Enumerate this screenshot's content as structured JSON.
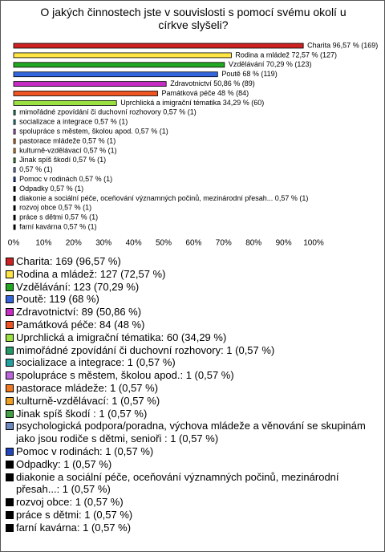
{
  "chart_data": {
    "type": "bar",
    "orientation": "horizontal",
    "title": "O jakých činnostech jste v souvislosti s pomocí svému okolí u církve slyšeli?",
    "values": [
      96.57,
      72.57,
      70.29,
      68,
      50.86,
      48,
      34.29,
      0.57,
      0.57,
      0.57,
      0.57,
      0.57,
      0.57,
      0.57,
      0.57,
      0.57,
      0.57,
      0.57,
      0.57,
      0.57
    ],
    "value_labels": [
      "Charita 96,57 % (169)",
      "Rodina a mládež 72,57 % (127)",
      "Vzdělávání 70,29 % (123)",
      "Poutě 68 % (119)",
      "Zdravotnictví 50,86 % (89)",
      "Památková péče 48 % (84)",
      "Uprchlická a imigrační tématika 34,29 % (60)",
      "mimořádné zpovídání či duchovní rozhovory 0,57 % (1)",
      "socializace a integrace 0,57 % (1)",
      "spolupráce s městem, školou apod. 0,57 % (1)",
      "pastorace mládeže 0,57 % (1)",
      "kulturně-vzdělávací 0,57 % (1)",
      "Jinak spíš škodí  0,57 % (1)",
      "0,57 % (1)",
      "Pomoc v rodinách 0,57 % (1)",
      "Odpadky 0,57 % (1)",
      "diakonie a sociální péče, oceňování významných počinů, mezinárodní přesah... 0,57 % (1)",
      "rozvoj obce 0,57 % (1)",
      "práce s dětmi 0,57 % (1)",
      "farní kavárna 0,57 % (1)"
    ],
    "categories": [
      "Charita: 169 (96,57 %)",
      "Rodina a mládež: 127 (72,57 %)",
      "Vzdělávání: 123 (70,29 %)",
      "Poutě: 119 (68 %)",
      "Zdravotnictví: 89 (50,86 %)",
      "Památková péče: 84 (48 %)",
      "Uprchlická a imigrační tématika: 60 (34,29 %)",
      "mimořádné zpovídání či duchovní rozhovory: 1 (0,57 %)",
      "socializace a integrace: 1 (0,57 %)",
      "spolupráce s městem, školou apod.: 1 (0,57 %)",
      "pastorace mládeže: 1 (0,57 %)",
      "kulturně-vzdělávací: 1 (0,57 %)",
      "Jinak spíš škodí : 1 (0,57 %)",
      "psychologická podpora/poradna, výchova mládeže a věnování se skupinám jako jsou rodiče s dětmi, senioři : 1 (0,57 %)",
      "Pomoc v rodinách: 1 (0,57 %)",
      "Odpadky: 1 (0,57 %)",
      "diakonie a sociální péče, oceňování významných počinů, mezinárodní přesah...: 1 (0,57 %)",
      "rozvoj obce: 1 (0,57 %)",
      "práce s dětmi: 1 (0,57 %)",
      "farní kavárna: 1 (0,57 %)"
    ],
    "colors": [
      "#cc2222",
      "#ffe645",
      "#22a822",
      "#3366dd",
      "#c42cc4",
      "#ee5522",
      "#99e040",
      "#229966",
      "#22a0a0",
      "#bb66dd",
      "#ee7722",
      "#eea022",
      "#44a044",
      "#7088c0",
      "#2244bb",
      "#000000",
      "#000000",
      "#000000",
      "#000000",
      "#000000"
    ],
    "xlim": [
      0,
      100
    ],
    "xticks": [
      {
        "value": 0,
        "label": "0%"
      },
      {
        "value": 10,
        "label": "10%"
      },
      {
        "value": 20,
        "label": "20%"
      },
      {
        "value": 30,
        "label": "30%"
      },
      {
        "value": 40,
        "label": "40%"
      },
      {
        "value": 50,
        "label": "50%"
      },
      {
        "value": 60,
        "label": "60%"
      },
      {
        "value": 70,
        "label": "70%"
      },
      {
        "value": 80,
        "label": "80%"
      },
      {
        "value": 90,
        "label": "90%"
      },
      {
        "value": 100,
        "label": "100%"
      }
    ]
  }
}
